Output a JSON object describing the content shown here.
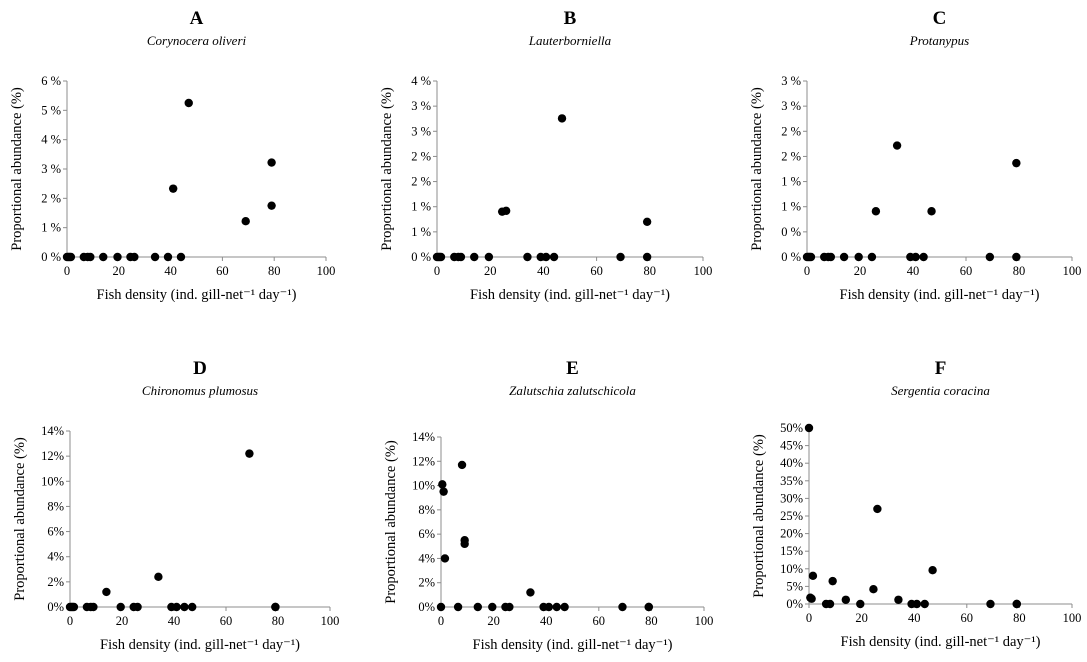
{
  "chart_data": [
    {
      "type": "scatter",
      "panel": "A",
      "title": "Corynocera oliveri",
      "xlabel": "Fish density (ind. gill-net⁻¹ day⁻¹)",
      "ylabel": "Proportional abundance (%)",
      "xlim": [
        0,
        100
      ],
      "ylim": [
        0,
        6
      ],
      "xticks": [
        "0",
        "20",
        "40",
        "60",
        "80",
        "100"
      ],
      "yticks": [
        "0 %",
        "1 %",
        "2 %",
        "3 %",
        "4 %",
        "5 %",
        "6 %"
      ],
      "x": [
        0,
        0.5,
        1,
        1.5,
        6.5,
        8,
        9,
        14,
        19.5,
        24.5,
        26,
        34,
        39,
        41,
        44,
        47,
        69,
        79,
        79
      ],
      "y": [
        0,
        0,
        0,
        0,
        0,
        0,
        0,
        0,
        0,
        0,
        0,
        0,
        0,
        2.33,
        0,
        5.25,
        1.22,
        3.22,
        1.75
      ]
    },
    {
      "type": "scatter",
      "panel": "B",
      "title": "Lauterborniella",
      "xlabel": "Fish density (ind. gill-net⁻¹ day⁻¹)",
      "ylabel": "Proportional abundance (%)",
      "xlim": [
        0,
        100
      ],
      "ylim": [
        0,
        4
      ],
      "xticks": [
        "0",
        "20",
        "40",
        "60",
        "80",
        "100"
      ],
      "yticks": [
        "0 %",
        "1 %",
        "1 %",
        "2 %",
        "2 %",
        "3 %",
        "3 %",
        "4 %"
      ],
      "x": [
        0,
        0.5,
        1,
        1.5,
        6.5,
        8,
        9,
        14,
        19.5,
        24.5,
        26,
        34,
        39,
        41,
        44,
        47,
        69,
        79,
        79
      ],
      "y": [
        0,
        0,
        0,
        0,
        0,
        0,
        0,
        0,
        0,
        1.03,
        1.05,
        0,
        0,
        0,
        0,
        3.15,
        0,
        0.8,
        0
      ]
    },
    {
      "type": "scatter",
      "panel": "C",
      "title": "Protanypus",
      "xlabel": "Fish density (ind. gill-net⁻¹ day⁻¹)",
      "ylabel": "Proportional abundance (%)",
      "xlim": [
        0,
        100
      ],
      "ylim": [
        0,
        3
      ],
      "xticks": [
        "0",
        "20",
        "40",
        "60",
        "80",
        "100"
      ],
      "yticks": [
        "0 %",
        "0 %",
        "1 %",
        "1 %",
        "2 %",
        "2 %",
        "3 %",
        "3 %"
      ],
      "x": [
        0,
        0.5,
        1,
        1.5,
        6.5,
        8,
        9,
        14,
        19.5,
        24.5,
        26,
        34,
        39,
        41,
        44,
        47,
        69,
        79,
        79
      ],
      "y": [
        0,
        0,
        0,
        0,
        0,
        0,
        0,
        0,
        0,
        0,
        0.78,
        1.9,
        0,
        0,
        0,
        0.78,
        0,
        1.6,
        0
      ]
    },
    {
      "type": "scatter",
      "panel": "D",
      "title": "Chironomus plumosus",
      "xlabel": "Fish density (ind. gill-net⁻¹ day⁻¹)",
      "ylabel": "Proportional abundance (%)",
      "xlim": [
        0,
        100
      ],
      "ylim": [
        0,
        14
      ],
      "xticks": [
        "0",
        "20",
        "40",
        "60",
        "80",
        "100"
      ],
      "yticks": [
        "0%",
        "2%",
        "4%",
        "6%",
        "8%",
        "10%",
        "12%",
        "14%"
      ],
      "x": [
        0,
        0.5,
        1,
        1.5,
        6.5,
        8,
        9,
        14,
        19.5,
        24.5,
        26,
        34,
        39,
        41,
        44,
        47,
        69,
        79,
        79
      ],
      "y": [
        0,
        0,
        0,
        0,
        0,
        0,
        0,
        1.2,
        0,
        0,
        0,
        2.4,
        0,
        0,
        0,
        0,
        12.2,
        0,
        0
      ]
    },
    {
      "type": "scatter",
      "panel": "E",
      "title": "Zalutschia zalutschicola",
      "xlabel": "Fish density (ind. gill-net⁻¹ day⁻¹)",
      "ylabel": "Proportional abundance (%)",
      "xlim": [
        0,
        100
      ],
      "ylim": [
        0,
        14
      ],
      "xticks": [
        "0",
        "20",
        "40",
        "60",
        "80",
        "100"
      ],
      "yticks": [
        "0%",
        "2%",
        "4%",
        "6%",
        "8%",
        "10%",
        "12%",
        "14%"
      ],
      "x": [
        0,
        0.5,
        1,
        1.5,
        6.5,
        8,
        9,
        9,
        14,
        19.5,
        24.5,
        26,
        34,
        39,
        41,
        44,
        47,
        69,
        79,
        79
      ],
      "y": [
        0,
        10.1,
        9.5,
        4.0,
        0,
        11.7,
        5.5,
        5.2,
        0,
        0,
        0,
        0,
        1.2,
        0,
        0,
        0,
        0,
        0,
        0,
        0
      ]
    },
    {
      "type": "scatter",
      "panel": "F",
      "title": "Sergentia coracina",
      "xlabel": "Fish density (ind. gill-net⁻¹ day⁻¹)",
      "ylabel": "Proportional abundance (%)",
      "xlim": [
        0,
        100
      ],
      "ylim": [
        0,
        50
      ],
      "xticks": [
        "0",
        "20",
        "40",
        "60",
        "80",
        "100"
      ],
      "yticks": [
        "0%",
        "5%",
        "10%",
        "15%",
        "20%",
        "25%",
        "30%",
        "35%",
        "40%",
        "45%",
        "50%"
      ],
      "x": [
        0,
        0.5,
        1,
        1.5,
        6.5,
        8,
        9,
        14,
        19.5,
        24.5,
        26,
        34,
        39,
        41,
        44,
        47,
        69,
        79,
        79
      ],
      "y": [
        50,
        1.8,
        1.5,
        8.0,
        0,
        0,
        6.5,
        1.2,
        0,
        4.2,
        27,
        1.2,
        0,
        0,
        0,
        9.6,
        0,
        0,
        0
      ]
    }
  ]
}
